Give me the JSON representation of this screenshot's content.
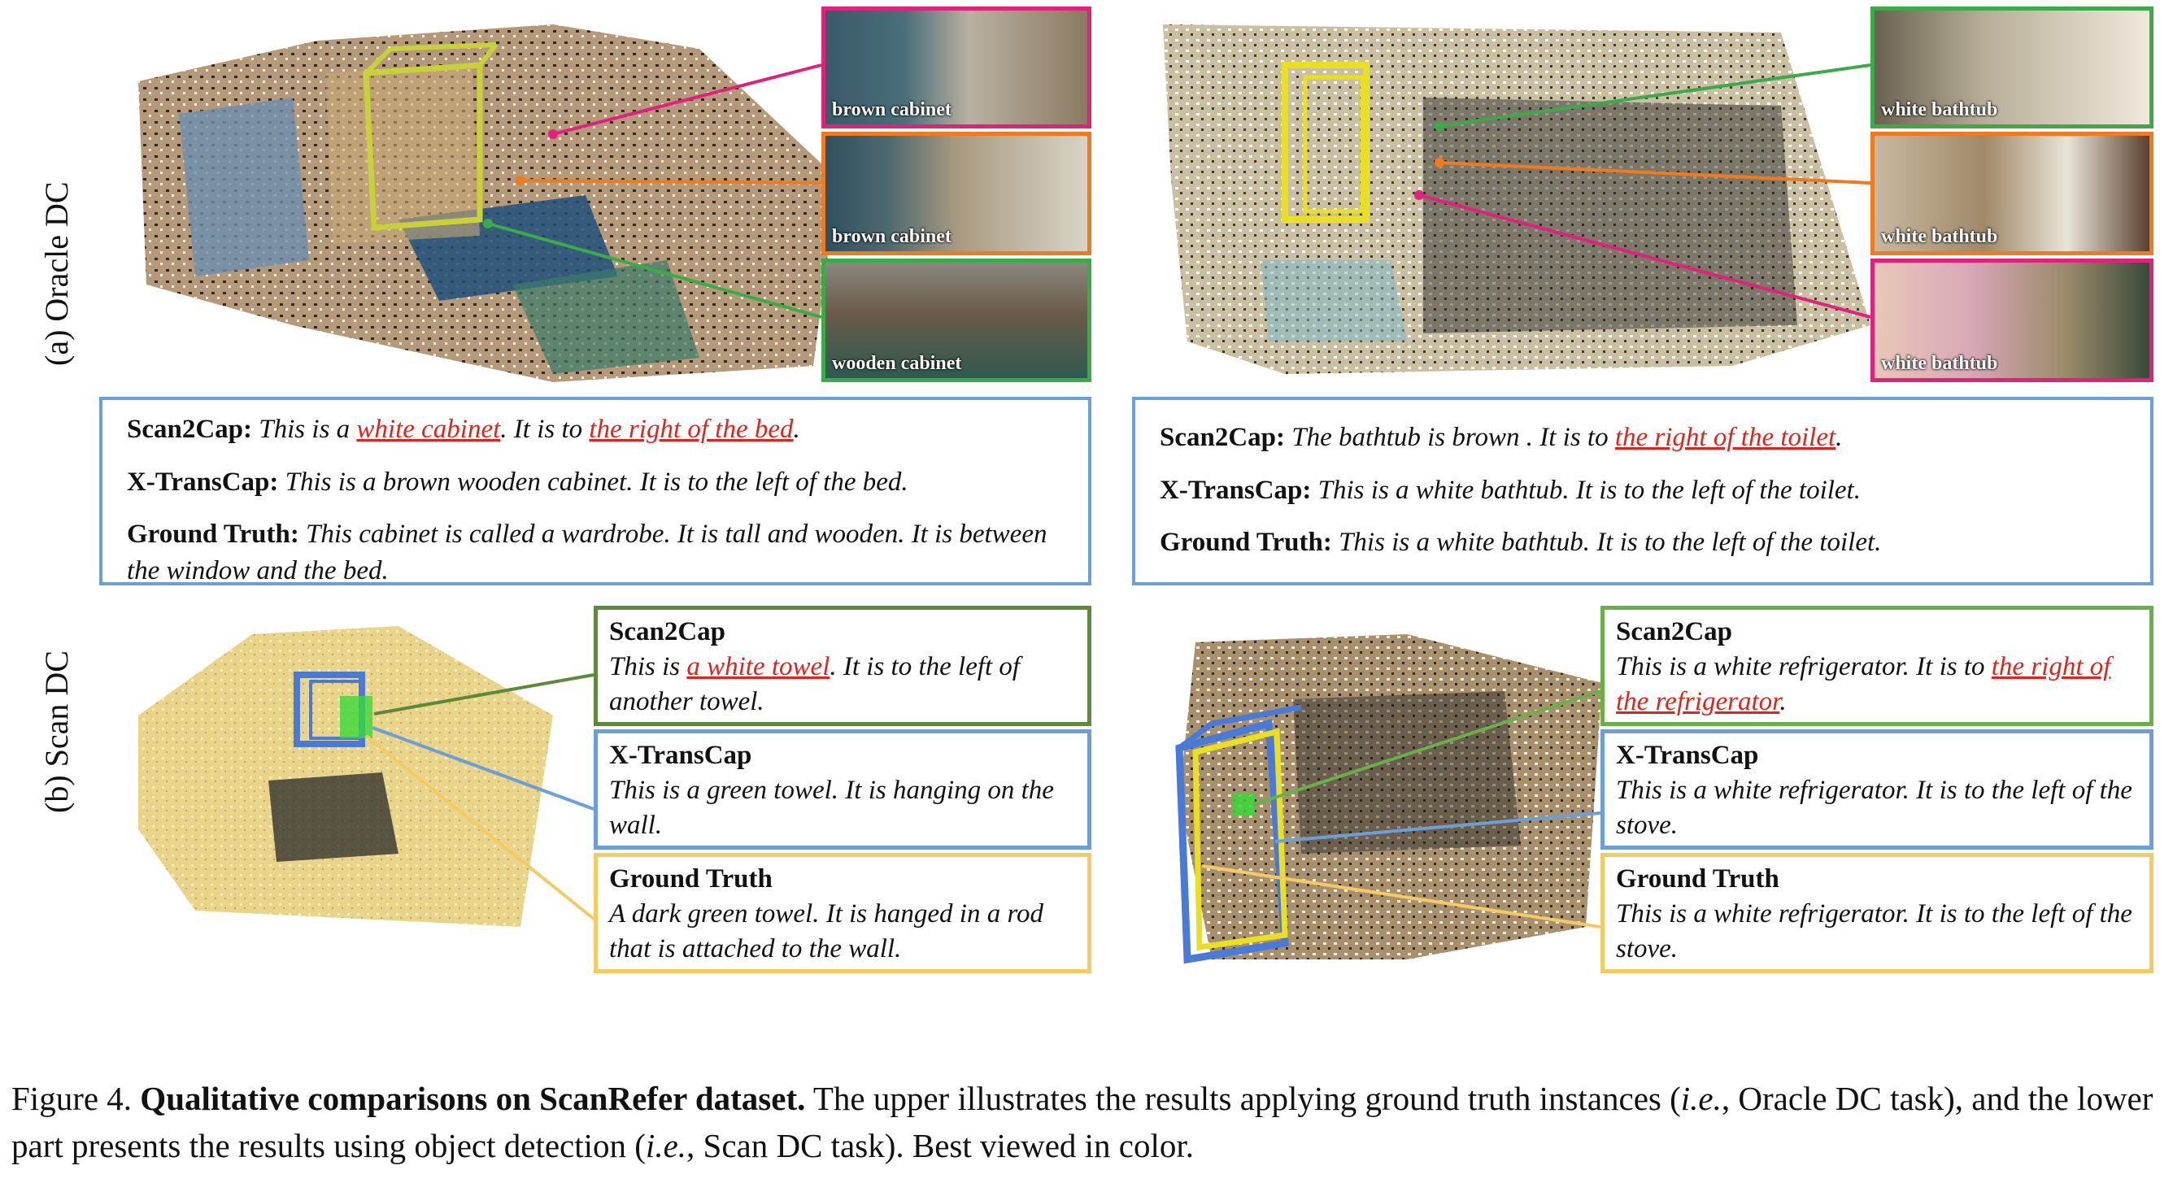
{
  "row_labels": {
    "oracle": "(a) Oracle DC",
    "scan": "(b) Scan DC"
  },
  "oracle_left": {
    "thumbs": [
      "brown cabinet",
      "brown cabinet",
      "wooden cabinet"
    ],
    "captions": {
      "scan2cap_label": "Scan2Cap:",
      "scan2cap_pre": "This is a ",
      "scan2cap_red1": "white cabinet",
      "scan2cap_mid": ". It is to ",
      "scan2cap_red2": "the right of the bed",
      "scan2cap_post": ".",
      "xtranscap_label": "X-TransCap:",
      "xtranscap_text": "This is a brown wooden cabinet. It is to the left of the bed.",
      "gt_label": "Ground Truth:",
      "gt_text": "This cabinet is called a wardrobe. It is tall and wooden. It is between the window and the bed."
    }
  },
  "oracle_right": {
    "thumbs": [
      "white bathtub",
      "white bathtub",
      "white bathtub"
    ],
    "captions": {
      "scan2cap_label": "Scan2Cap:",
      "scan2cap_pre": "The bathtub is brown . It is to ",
      "scan2cap_red": "the right of the toilet",
      "scan2cap_post": ".",
      "xtranscap_label": "X-TransCap:",
      "xtranscap_text": "This is a white bathtub. It is to the left of the toilet.",
      "gt_label": "Ground Truth:",
      "gt_text": "This is a white bathtub. It is to the left of the toilet."
    }
  },
  "scan_left": {
    "scan2cap_head": "Scan2Cap",
    "scan2cap_pre": "This is ",
    "scan2cap_red": "a white towel",
    "scan2cap_post": ". It is to the left of another towel.",
    "xtranscap_head": "X-TransCap",
    "xtranscap_text": "This is a green towel. It is hanging on the wall.",
    "gt_head": "Ground Truth",
    "gt_text": "A dark green towel. It is hanged in a rod that is attached to the wall."
  },
  "scan_right": {
    "scan2cap_head": "Scan2Cap",
    "scan2cap_pre": "This is a white refrigerator. It is to ",
    "scan2cap_red": "the right of the refrigerator",
    "scan2cap_post": ".",
    "xtranscap_head": "X-TransCap",
    "xtranscap_text": "This is a white refrigerator. It is to the left of the stove.",
    "gt_head": "Ground Truth",
    "gt_text": "This is a white refrigerator. It is to the left of the stove."
  },
  "caption": {
    "prefix": "Figure 4. ",
    "bold": "Qualitative comparisons on ScanRefer dataset.",
    "t1": " The upper illustrates the results applying ground truth instances (",
    "ie1": "i.e.",
    "t2": ", Oracle DC task), and the lower part presents the results using object detection (",
    "ie2": "i.e.",
    "t3": ", Scan DC task). Best viewed in color."
  },
  "colors": {
    "pink": "#e0227a",
    "orange": "#f07a1e",
    "green": "#3bab4a",
    "blue": "#6a9fd8",
    "darkgreen": "#5c8a3a",
    "yellow": "#f2cc62",
    "red": "#e0241c"
  }
}
